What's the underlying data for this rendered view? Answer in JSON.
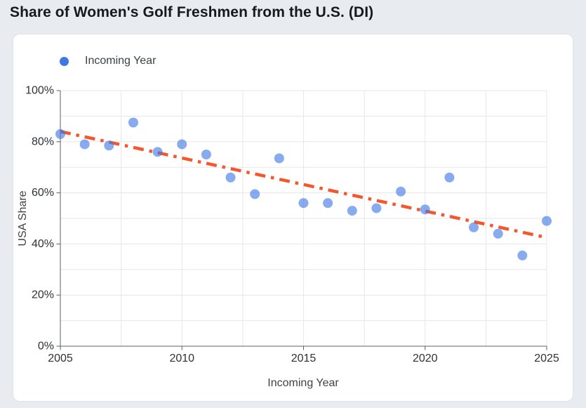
{
  "header": {
    "title": "Share of Women's Golf Freshmen from the U.S. (DI)"
  },
  "chart_data": {
    "type": "scatter",
    "title": "Share of Women's Golf Freshmen from the U.S. (DI)",
    "xlabel": "Incoming Year",
    "ylabel": "USA Share",
    "legend": {
      "position": "top-left",
      "label": "Incoming Year",
      "marker_color": "#3d78e4"
    },
    "xlim": [
      2005,
      2025
    ],
    "ylim": [
      0,
      100
    ],
    "x_ticks": [
      2005,
      2010,
      2015,
      2020,
      2025
    ],
    "x_tick_labels": [
      "2005",
      "2010",
      "2015",
      "2020",
      "2025"
    ],
    "y_ticks": [
      0,
      20,
      40,
      60,
      80,
      100
    ],
    "y_tick_labels": [
      "0%",
      "20%",
      "40%",
      "60%",
      "80%",
      "100%"
    ],
    "grid": {
      "on": true,
      "x_step": 2.5,
      "y_step": 10
    },
    "series": [
      {
        "name": "Incoming Year",
        "type": "scatter",
        "color": "#3d78e4",
        "opacity": 0.62,
        "x": [
          2005,
          2006,
          2007,
          2008,
          2009,
          2010,
          2011,
          2012,
          2013,
          2014,
          2015,
          2016,
          2017,
          2018,
          2019,
          2020,
          2021,
          2022,
          2023,
          2024,
          2025
        ],
        "y": [
          83,
          79,
          78.5,
          87.5,
          76,
          79,
          75,
          66,
          59.5,
          73.5,
          56,
          56,
          53,
          54,
          60.5,
          53.5,
          66,
          46.5,
          44,
          35.5,
          49
        ]
      }
    ],
    "trendline": {
      "x": [
        2005,
        2025
      ],
      "y": [
        84,
        42.5
      ],
      "color": "#f4562e",
      "style": "dash-dot",
      "width": 4.5
    }
  },
  "colors": {
    "page_bg": "#e8ebef",
    "card_bg": "#ffffff",
    "grid": "#e7e7e7",
    "axis": "#5f6063",
    "tick_text": "#2e3136",
    "axis_title_text": "#3f4245",
    "legend_text": "#3c4043",
    "title_text": "#17191d"
  }
}
